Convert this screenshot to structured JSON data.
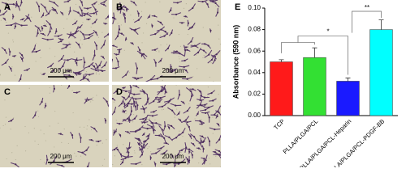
{
  "panels": [
    {
      "label": "A",
      "scale_bar": "200 μm"
    },
    {
      "label": "B",
      "scale_bar": "200 μm"
    },
    {
      "label": "C",
      "scale_bar": "200 μm"
    },
    {
      "label": "D",
      "scale_bar": "200 μm"
    }
  ],
  "chart_data": {
    "type": "bar",
    "panel_label": "E",
    "y_label": "Absorbance (590 nm)",
    "categories": [
      "TCP",
      "PLLA/PLGA/PCL",
      "PLLA/PLGA/PCL-Heparin",
      "PLLA/PLGA/PCL-PDGF-BB"
    ],
    "values": [
      0.05,
      0.054,
      0.032,
      0.08
    ],
    "errors": [
      0.002,
      0.009,
      0.003,
      0.009
    ],
    "colors": [
      "#ff1a1a",
      "#33e033",
      "#1a1aff",
      "#00ffff"
    ],
    "ylim": [
      0,
      0.1
    ],
    "yticks": [
      {
        "value": 0,
        "label": "0.00"
      },
      0.02,
      0.04,
      0.06,
      0.08,
      {
        "value": 0.1,
        "label": "0.10"
      }
    ],
    "annotations": [
      "*",
      "**"
    ]
  }
}
